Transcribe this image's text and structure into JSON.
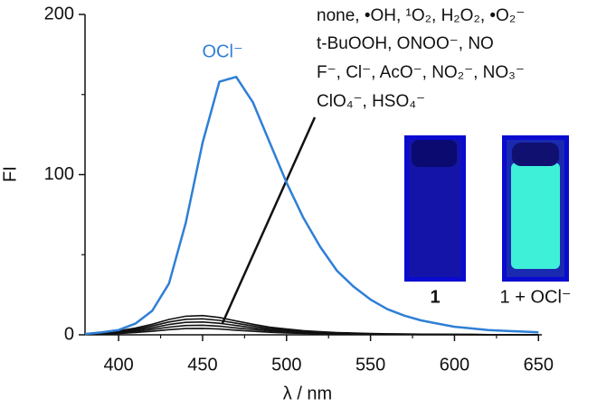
{
  "chart_data": {
    "type": "line",
    "x_label": "λ / nm",
    "y_label": "FI",
    "xlim": [
      380,
      652
    ],
    "ylim": [
      0,
      200
    ],
    "xticks": [
      400,
      450,
      500,
      550,
      600,
      650
    ],
    "x_minor_ticks": [
      425,
      475,
      525,
      575,
      625
    ],
    "yticks": [
      0,
      100,
      200
    ],
    "y_minor_ticks": [
      50,
      150
    ],
    "x": [
      380,
      390,
      400,
      410,
      420,
      430,
      440,
      450,
      460,
      470,
      480,
      490,
      500,
      510,
      520,
      530,
      540,
      550,
      560,
      570,
      580,
      590,
      600,
      610,
      620,
      630,
      640,
      650
    ],
    "series": [
      {
        "name": "OCl⁻",
        "color": "#2f7fd6",
        "values": [
          0.5,
          1.5,
          3,
          7,
          15,
          32,
          70,
          120,
          158,
          161,
          145,
          120,
          95,
          73,
          55,
          40,
          30,
          22,
          16,
          12,
          9,
          7,
          5,
          4,
          3,
          2.5,
          2,
          1.5
        ]
      },
      {
        "color": "#111111",
        "values": [
          0.6,
          1.2,
          2.4,
          4.2,
          6.6,
          9.6,
          11.6,
          12,
          10.8,
          8.6,
          6.6,
          4.8,
          3.6,
          2.6,
          1.9,
          1.4,
          1.1,
          0.8,
          0.6,
          0.5,
          0.4,
          0.3,
          0.2,
          0.2,
          0.1,
          0.1,
          0.1,
          0.1
        ]
      },
      {
        "color": "#111111",
        "values": [
          0.5,
          1,
          2,
          3.5,
          5.5,
          8,
          9.7,
          10,
          9,
          7.2,
          5.5,
          4,
          3,
          2.2,
          1.6,
          1.2,
          0.9,
          0.7,
          0.5,
          0.4,
          0.3,
          0.3,
          0.2,
          0.2,
          0.1,
          0.1,
          0.1,
          0.1
        ]
      },
      {
        "color": "#111111",
        "values": [
          0.4,
          0.8,
          1.6,
          2.8,
          4.4,
          6.4,
          7.8,
          8,
          7.2,
          5.8,
          4.4,
          3.2,
          2.4,
          1.8,
          1.3,
          1,
          0.7,
          0.6,
          0.4,
          0.3,
          0.2,
          0.2,
          0.2,
          0.1,
          0.1,
          0.1,
          0.1,
          0.1
        ]
      },
      {
        "color": "#111111",
        "values": [
          0.3,
          0.6,
          1.2,
          2.1,
          3.3,
          4.8,
          5.8,
          6,
          5.4,
          4.3,
          3.3,
          2.4,
          1.8,
          1.3,
          1,
          0.7,
          0.5,
          0.4,
          0.3,
          0.2,
          0.2,
          0.2,
          0.1,
          0.1,
          0.1,
          0.1,
          0.1,
          0.1
        ]
      },
      {
        "color": "#111111",
        "values": [
          0.2,
          0.4,
          0.8,
          1.4,
          2.2,
          3.2,
          3.9,
          4,
          3.6,
          2.9,
          2.2,
          1.6,
          1.2,
          0.9,
          0.6,
          0.5,
          0.4,
          0.3,
          0.2,
          0.2,
          0.1,
          0.1,
          0.1,
          0.1,
          0,
          0,
          0,
          0
        ]
      }
    ],
    "annotations": [
      "none, •OH, ¹O₂, H₂O₂, •O₂⁻",
      "t-BuOOH, ONOO⁻, NO",
      "F⁻, Cl⁻, AcO⁻, NO₂⁻, NO₃⁻",
      "ClO₄⁻, HSO₄⁻"
    ],
    "inset_labels": [
      "1",
      "1 + OCl⁻"
    ]
  }
}
